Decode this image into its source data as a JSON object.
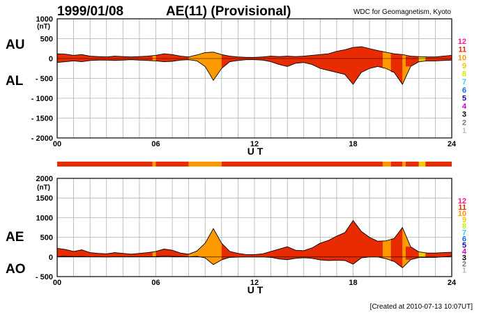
{
  "header": {
    "date": "1999/01/08",
    "title": "AE(11) (Provisional)",
    "source": "WDC for Geomagnetism, Kyoto",
    "created": "[Created at 2010-07-13 10:07UT]"
  },
  "legend_levels": [
    {
      "label": "12",
      "color": "#ff1493"
    },
    {
      "label": "11",
      "color": "#e82b00"
    },
    {
      "label": "10",
      "color": "#ff9900"
    },
    {
      "label": "9",
      "color": "#eecc00"
    },
    {
      "label": "8",
      "color": "#ccee00"
    },
    {
      "label": "7",
      "color": "#33ccee"
    },
    {
      "label": "6",
      "color": "#1166ff"
    },
    {
      "label": "5",
      "color": "#2200aa"
    },
    {
      "label": "4",
      "color": "#cc00cc"
    },
    {
      "label": "3",
      "color": "#000000"
    },
    {
      "label": "2",
      "color": "#777777"
    },
    {
      "label": "1",
      "color": "#bbbbbb"
    }
  ],
  "chart_data": [
    {
      "type": "area",
      "panel": "top",
      "series_labels": [
        "AU",
        "AL"
      ],
      "ylabel": "(nT)",
      "xlabel": "U T",
      "xlim": [
        0,
        24
      ],
      "ylim": [
        -2000,
        1000
      ],
      "yticks": [
        1000,
        500,
        0,
        -500,
        -1000,
        -1500,
        -2000
      ],
      "ytick_labels": [
        "1000",
        "500",
        "0",
        "- 500",
        "- 1000",
        "- 1500",
        "- 2000"
      ],
      "xticks": [
        0,
        6,
        12,
        18,
        24
      ],
      "xtick_labels": [
        "00",
        "06",
        "12",
        "18",
        "24"
      ],
      "grid": true,
      "x": [
        0,
        0.5,
        1,
        1.5,
        2,
        2.5,
        3,
        3.5,
        4,
        4.5,
        5,
        5.5,
        6,
        6.5,
        7,
        7.5,
        8,
        8.5,
        9,
        9.5,
        10,
        10.5,
        11,
        11.5,
        12,
        12.5,
        13,
        13.5,
        14,
        14.5,
        15,
        15.5,
        16,
        16.5,
        17,
        17.5,
        18,
        18.5,
        19,
        19.5,
        20,
        20.5,
        21,
        21.5,
        22,
        22.5,
        23,
        23.5,
        24
      ],
      "series": [
        {
          "name": "AU",
          "values": [
            120,
            110,
            80,
            100,
            60,
            50,
            40,
            60,
            50,
            40,
            50,
            60,
            80,
            120,
            100,
            60,
            40,
            90,
            150,
            160,
            100,
            60,
            40,
            30,
            30,
            40,
            60,
            50,
            60,
            50,
            60,
            80,
            100,
            120,
            180,
            220,
            280,
            300,
            250,
            200,
            160,
            120,
            100,
            60,
            50,
            40,
            40,
            60,
            80
          ]
        },
        {
          "name": "AL",
          "values": [
            -100,
            -80,
            -60,
            -80,
            -50,
            -40,
            -40,
            -50,
            -40,
            -30,
            -40,
            -50,
            -60,
            -80,
            -70,
            -40,
            -30,
            -60,
            -200,
            -550,
            -250,
            -80,
            -50,
            -30,
            -30,
            -40,
            -80,
            -150,
            -200,
            -120,
            -100,
            -150,
            -250,
            -300,
            -350,
            -400,
            -650,
            -350,
            -250,
            -200,
            -250,
            -350,
            -650,
            -200,
            -80,
            -60,
            -60,
            -50,
            -40
          ]
        }
      ]
    },
    {
      "type": "area",
      "panel": "bottom",
      "series_labels": [
        "AE",
        "AO"
      ],
      "ylabel": "(nT)",
      "xlabel": "U T",
      "xlim": [
        0,
        24
      ],
      "ylim": [
        -500,
        2000
      ],
      "yticks": [
        2000,
        1500,
        1000,
        500,
        0,
        -500
      ],
      "ytick_labels": [
        "2000",
        "1500",
        "1000",
        "500",
        "0",
        "- 500"
      ],
      "xticks": [
        0,
        6,
        12,
        18,
        24
      ],
      "xtick_labels": [
        "00",
        "06",
        "12",
        "18",
        "24"
      ],
      "grid": true,
      "x": [
        0,
        0.5,
        1,
        1.5,
        2,
        2.5,
        3,
        3.5,
        4,
        4.5,
        5,
        5.5,
        6,
        6.5,
        7,
        7.5,
        8,
        8.5,
        9,
        9.5,
        10,
        10.5,
        11,
        11.5,
        12,
        12.5,
        13,
        13.5,
        14,
        14.5,
        15,
        15.5,
        16,
        16.5,
        17,
        17.5,
        18,
        18.5,
        19,
        19.5,
        20,
        20.5,
        21,
        21.5,
        22,
        22.5,
        23,
        23.5,
        24
      ],
      "series": [
        {
          "name": "AE",
          "values": [
            220,
            190,
            140,
            180,
            110,
            90,
            80,
            110,
            90,
            70,
            90,
            110,
            140,
            200,
            170,
            100,
            70,
            150,
            350,
            720,
            350,
            140,
            90,
            60,
            60,
            80,
            140,
            200,
            260,
            170,
            160,
            230,
            350,
            420,
            530,
            620,
            930,
            650,
            500,
            400,
            410,
            470,
            750,
            260,
            130,
            100,
            100,
            110,
            120
          ]
        },
        {
          "name": "AO",
          "values": [
            10,
            15,
            10,
            10,
            5,
            5,
            0,
            5,
            5,
            5,
            5,
            5,
            10,
            20,
            15,
            10,
            5,
            15,
            -25,
            -195,
            -75,
            -10,
            -5,
            0,
            0,
            0,
            -10,
            -50,
            -70,
            -35,
            -20,
            -35,
            -75,
            -90,
            -85,
            -90,
            -185,
            -25,
            0,
            0,
            -45,
            -115,
            -275,
            -70,
            -15,
            -10,
            -10,
            5,
            20
          ]
        }
      ]
    }
  ],
  "activity_bar": {
    "label_levels": [
      {
        "x0": 0,
        "x1": 5.8,
        "level": "11"
      },
      {
        "x0": 5.8,
        "x1": 6.0,
        "level": "10"
      },
      {
        "x0": 6.0,
        "x1": 8.0,
        "level": "11"
      },
      {
        "x0": 8.0,
        "x1": 10.0,
        "level": "10"
      },
      {
        "x0": 10.0,
        "x1": 19.8,
        "level": "11"
      },
      {
        "x0": 19.8,
        "x1": 20.3,
        "level": "10"
      },
      {
        "x0": 20.3,
        "x1": 21.0,
        "level": "11"
      },
      {
        "x0": 21.0,
        "x1": 21.2,
        "level": "10"
      },
      {
        "x0": 21.2,
        "x1": 22.0,
        "level": "11"
      },
      {
        "x0": 22.0,
        "x1": 22.4,
        "level": "9"
      },
      {
        "x0": 22.4,
        "x1": 24.0,
        "level": "11"
      }
    ]
  }
}
